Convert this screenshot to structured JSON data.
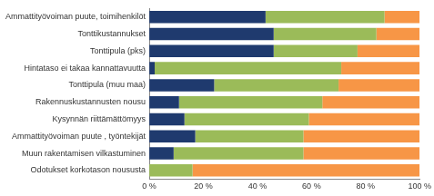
{
  "chart_data": {
    "type": "bar",
    "orientation": "horizontal",
    "stacked": true,
    "grid": false,
    "categories": [
      "Ammattityövoiman puute, toimihenkilöt",
      "Tonttikustannukset",
      "Tonttipula (pks)",
      "Hintataso ei takaa kannattavuutta",
      "Tonttipula (muu maa)",
      "Rakennuskustannusten nousu",
      "Kysynnän riittämättömyys",
      "Ammattityövoiman puute , työntekijät",
      "Muun rakentamisen vilkastuminen",
      "Odotukset korkotason noususta"
    ],
    "series": [
      {
        "color": "#1f3a6e",
        "values": [
          43,
          46,
          46,
          2,
          24,
          11,
          13,
          17,
          9,
          0
        ]
      },
      {
        "color": "#9bbb59",
        "values": [
          44,
          38,
          31,
          69,
          46,
          53,
          46,
          40,
          48,
          16
        ]
      },
      {
        "color": "#f79646",
        "values": [
          13,
          16,
          23,
          29,
          30,
          36,
          41,
          43,
          43,
          84
        ]
      }
    ],
    "xlim": [
      0,
      100
    ],
    "xticks": [
      {
        "value": 0,
        "label": "0 %"
      },
      {
        "value": 20,
        "label": "20 %"
      },
      {
        "value": 40,
        "label": "40 %"
      },
      {
        "value": 60,
        "label": "60 %"
      },
      {
        "value": 80,
        "label": "80 %"
      },
      {
        "value": 100,
        "label": "100 %"
      }
    ]
  }
}
